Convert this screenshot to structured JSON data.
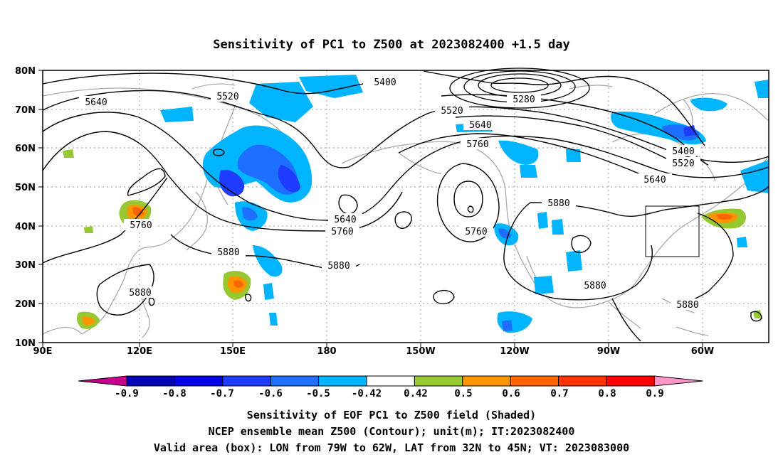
{
  "title": "Sensitivity of PC1 to Z500 at 2023082400 +1.5 day",
  "map": {
    "lon_ticks": [
      "90E",
      "120E",
      "150E",
      "180",
      "150W",
      "120W",
      "90W",
      "60W"
    ],
    "lat_ticks": [
      "80N",
      "70N",
      "60N",
      "50N",
      "40N",
      "30N",
      "20N",
      "10N"
    ],
    "contour_labels": [
      "5400",
      "5520",
      "5640",
      "5280",
      "5520",
      "5640",
      "5760",
      "5400",
      "5520",
      "5640",
      "5760",
      "5640",
      "5760",
      "5880",
      "5760",
      "5880",
      "5880",
      "5880",
      "5880",
      "5880"
    ],
    "box_region": "LON 79W–62W, LAT 32N–45N"
  },
  "colorbar": {
    "labels": [
      "-0.9",
      "-0.8",
      "-0.7",
      "-0.6",
      "-0.5",
      "-0.42",
      "0.42",
      "0.5",
      "0.6",
      "0.7",
      "0.8",
      "0.9"
    ],
    "colors": [
      "#c8008c",
      "#0000b4",
      "#0000e6",
      "#1e3cff",
      "#1e6eff",
      "#00b4ff",
      "#ffffff",
      "#96c832",
      "#ff9600",
      "#ff6400",
      "#ff3200",
      "#ff0000",
      "#ff96c8"
    ]
  },
  "captions": [
    "Sensitivity of EOF PC1 to Z500 field (Shaded)",
    "NCEP ensemble mean Z500 (Contour); unit(m); IT:2023082400",
    "Valid area (box): LON from 79W to 62W, LAT from 32N to 45N; VT: 2023083000"
  ]
}
